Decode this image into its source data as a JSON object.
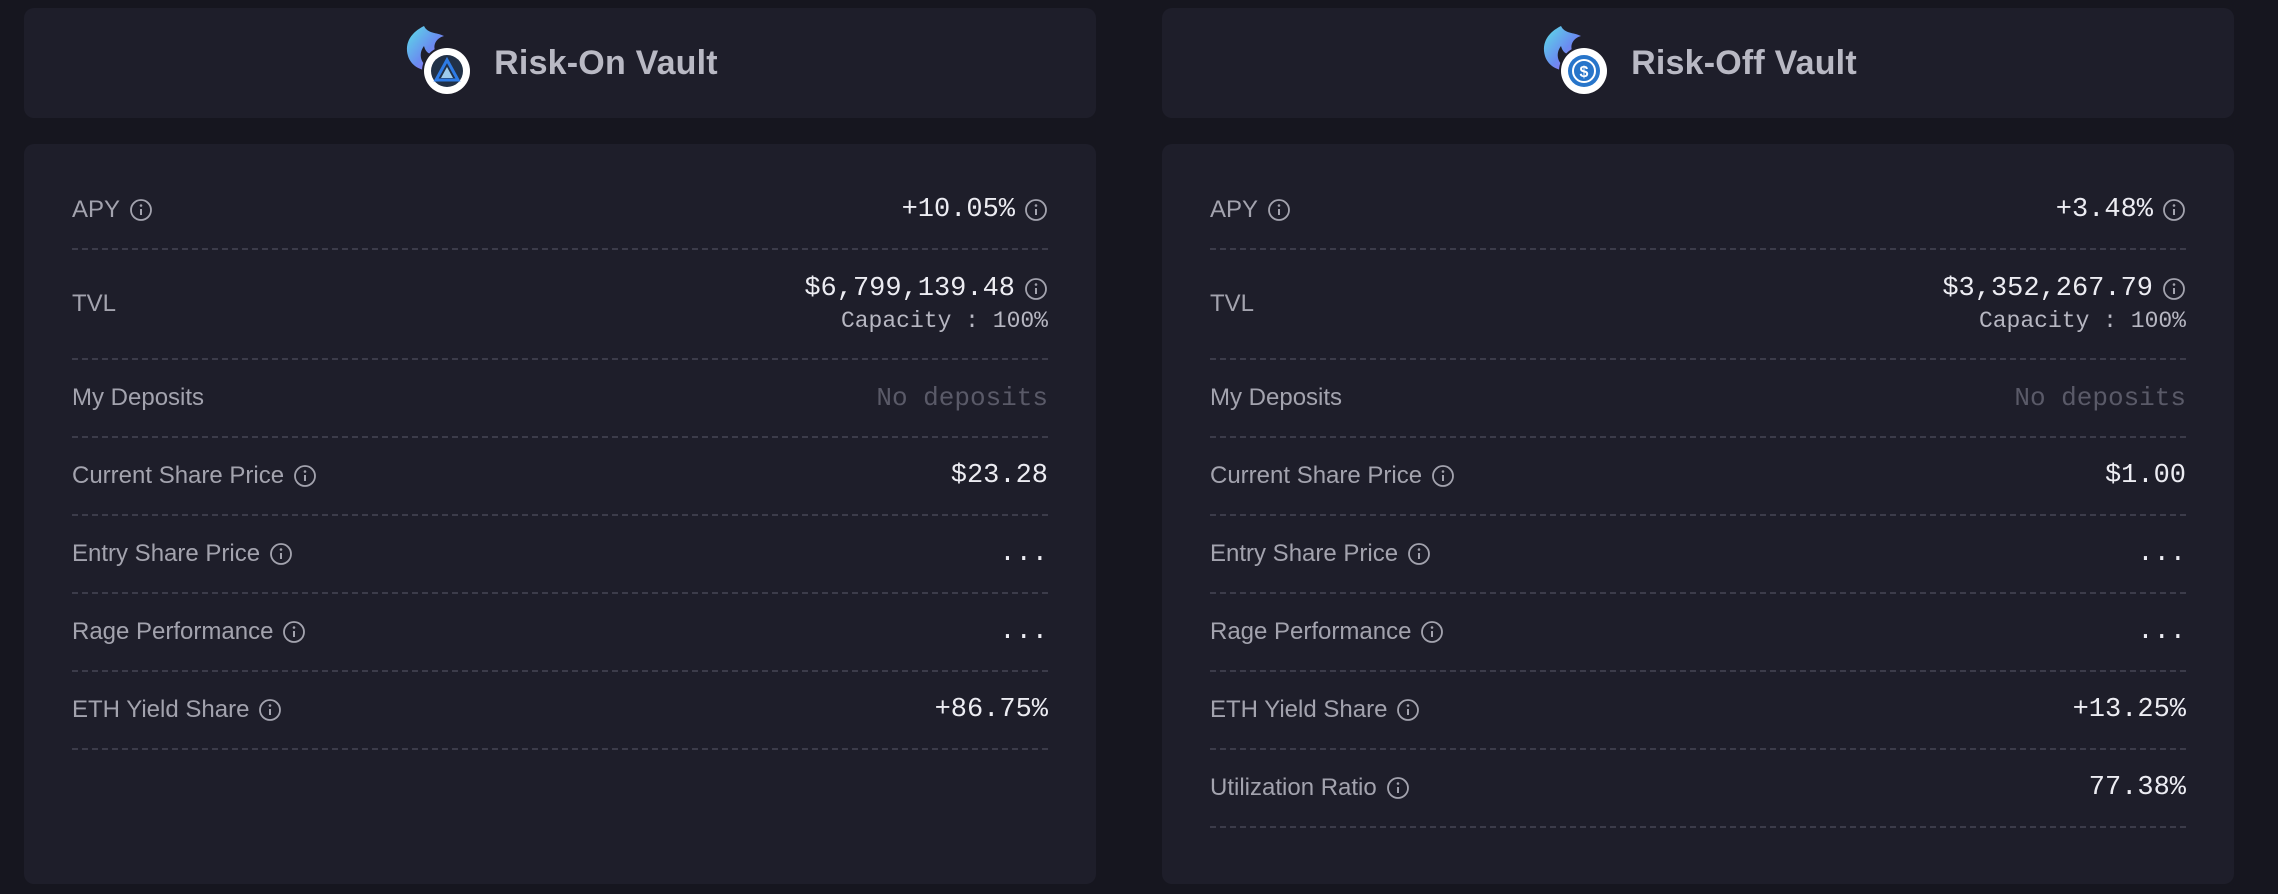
{
  "vaults": [
    {
      "title": "Risk-On Vault",
      "badge_icon": "arbitrum-icon",
      "rows": {
        "apy": {
          "label": "APY",
          "value": "+10.05%"
        },
        "tvl": {
          "label": "TVL",
          "value": "$6,799,139.48",
          "capacity": "Capacity : 100%"
        },
        "deposits": {
          "label": "My Deposits",
          "value": "No deposits"
        },
        "current_share_price": {
          "label": "Current Share Price",
          "value": "$23.28"
        },
        "entry_share_price": {
          "label": "Entry Share Price",
          "value": "..."
        },
        "rage_performance": {
          "label": "Rage Performance",
          "value": "..."
        },
        "eth_yield_share": {
          "label": "ETH Yield Share",
          "value": "+86.75%"
        }
      }
    },
    {
      "title": "Risk-Off Vault",
      "badge_icon": "usdc-icon",
      "rows": {
        "apy": {
          "label": "APY",
          "value": "+3.48%"
        },
        "tvl": {
          "label": "TVL",
          "value": "$3,352,267.79",
          "capacity": "Capacity : 100%"
        },
        "deposits": {
          "label": "My Deposits",
          "value": "No deposits"
        },
        "current_share_price": {
          "label": "Current Share Price",
          "value": "$1.00"
        },
        "entry_share_price": {
          "label": "Entry Share Price",
          "value": "..."
        },
        "rage_performance": {
          "label": "Rage Performance",
          "value": "..."
        },
        "eth_yield_share": {
          "label": "ETH Yield Share",
          "value": "+13.25%"
        },
        "utilization_ratio": {
          "label": "Utilization Ratio",
          "value": "77.38%"
        }
      }
    }
  ],
  "colors": {
    "background": "#16161f",
    "card": "#1e1e2a",
    "text_primary": "#ececf2",
    "text_label": "#a3a3ae",
    "text_muted": "#5a5a68",
    "arbitrum_blue": "#2d7be5",
    "usdc_blue": "#2775ca"
  }
}
